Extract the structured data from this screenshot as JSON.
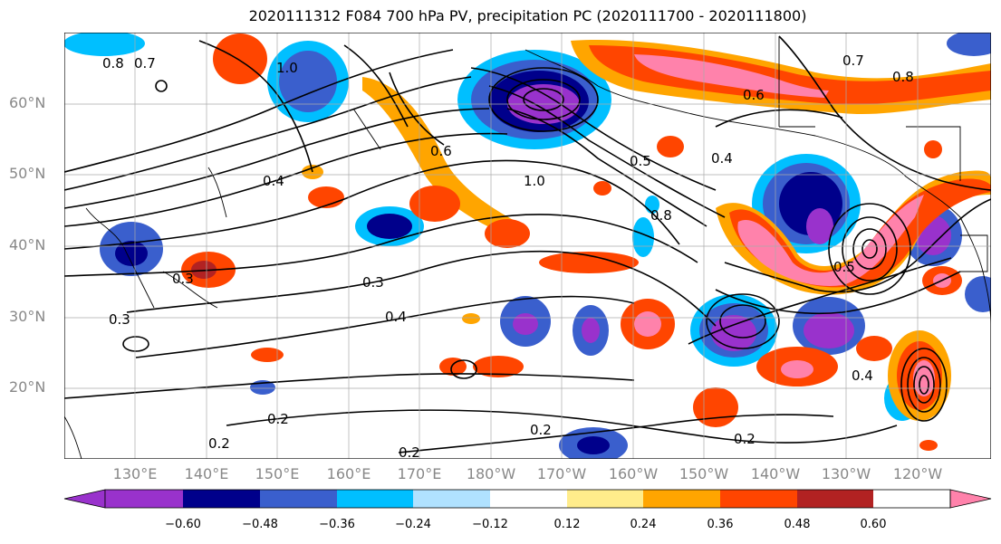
{
  "title": "2020111312 F084 700 hPa PV, precipitation PC (2020111700 - 2020111800)",
  "lat_labels": [
    "60°N",
    "50°N",
    "40°N",
    "30°N",
    "20°N"
  ],
  "lon_labels": [
    "130°E",
    "140°E",
    "150°E",
    "160°E",
    "170°E",
    "180°W",
    "170°W",
    "160°W",
    "150°W",
    "140°W",
    "130°W",
    "120°W"
  ],
  "contour_labels": [
    "0.8",
    "0.7",
    "1.0",
    "0.4",
    "0.7",
    "0.8",
    "0.6",
    "0.5",
    "1.0",
    "0.8",
    "0.4",
    "0.6",
    "0.3",
    "0.3",
    "0.4",
    "0.3",
    "0.2",
    "0.2",
    "0.2",
    "0.2",
    "0.5",
    "0.4",
    "0.2"
  ],
  "colorbar": {
    "ticks": [
      "−0.60",
      "−0.48",
      "−0.36",
      "−0.24",
      "−0.12",
      "0.12",
      "0.24",
      "0.36",
      "0.48",
      "0.60"
    ],
    "colors": [
      "#9932cc",
      "#00008b",
      "#3a5fcd",
      "#00bfff",
      "#b0e2ff",
      "#ffffff",
      "#ffec8b",
      "#ffa500",
      "#ff4500",
      "#b22222",
      "#ff82ab"
    ]
  }
}
